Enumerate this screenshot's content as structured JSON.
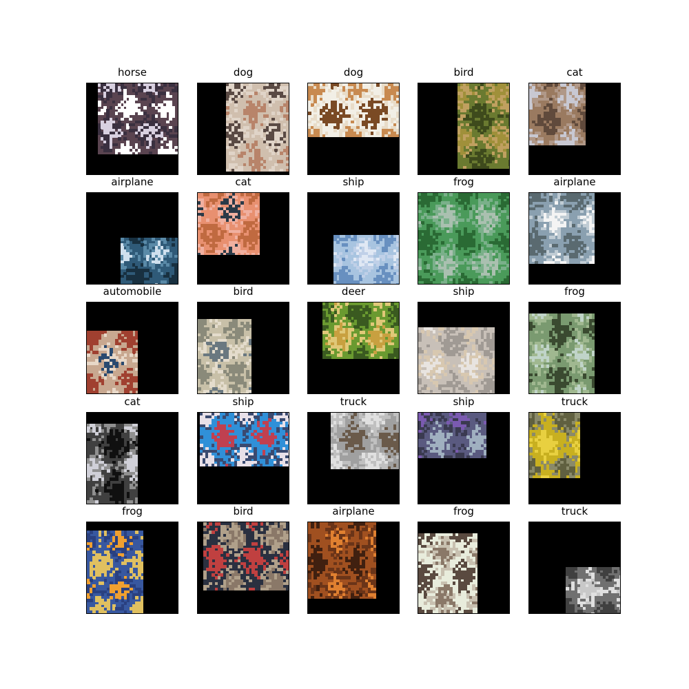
{
  "grid": {
    "cells": [
      {
        "label": "horse",
        "colors": [
          "#5a4450",
          "#d8d0e0",
          "#ffffff",
          "#3a3040"
        ]
      },
      {
        "label": "dog",
        "colors": [
          "#d0bfae",
          "#5a4a44",
          "#b8846a",
          "#e0d4c8"
        ]
      },
      {
        "label": "dog",
        "colors": [
          "#f2efe6",
          "#c88a50",
          "#7a4a24",
          "#e8dcc8"
        ]
      },
      {
        "label": "bird",
        "colors": [
          "#6a7a30",
          "#a0903a",
          "#3e4a1c",
          "#c0a060"
        ]
      },
      {
        "label": "cat",
        "colors": [
          "#9a7a60",
          "#c8c8d2",
          "#604a3c",
          "#b09888"
        ]
      },
      {
        "label": "airplane",
        "colors": [
          "#2f5a78",
          "#cfe0ee",
          "#183040",
          "#5a8aa8"
        ]
      },
      {
        "label": "cat",
        "colors": [
          "#e89070",
          "#2a3a48",
          "#c06a40",
          "#f0b0a0"
        ]
      },
      {
        "label": "ship",
        "colors": [
          "#a8c4e0",
          "#e0e8f4",
          "#6890c0",
          "#c0d0e8"
        ]
      },
      {
        "label": "frog",
        "colors": [
          "#4a9a5a",
          "#aac0b0",
          "#2a6a34",
          "#7ab08a"
        ]
      },
      {
        "label": "airplane",
        "colors": [
          "#8aa0b0",
          "#f4f4f4",
          "#5a6a70",
          "#c0ccd4"
        ]
      },
      {
        "label": "automobile",
        "colors": [
          "#c8a890",
          "#2a4a70",
          "#a04030",
          "#e8d8c8"
        ]
      },
      {
        "label": "bird",
        "colors": [
          "#c8c0a8",
          "#6a7880",
          "#8a8a7a",
          "#e4dccc"
        ]
      },
      {
        "label": "deer",
        "colors": [
          "#6a9a30",
          "#c8a040",
          "#3a5a20",
          "#e0c878"
        ]
      },
      {
        "label": "ship",
        "colors": [
          "#c8c0b8",
          "#e8e4e0",
          "#a09a94",
          "#d8c8b0"
        ]
      },
      {
        "label": "frog",
        "colors": [
          "#7a9a70",
          "#c0d4c8",
          "#3a4a30",
          "#a0b890"
        ]
      },
      {
        "label": "cat",
        "colors": [
          "#404040",
          "#d0d0d8",
          "#101010",
          "#909090"
        ]
      },
      {
        "label": "ship",
        "colors": [
          "#3090d8",
          "#e8e0e8",
          "#c04050",
          "#3a4a70"
        ]
      },
      {
        "label": "truck",
        "colors": [
          "#a0a0a0",
          "#e0e0e0",
          "#6a5a4a",
          "#c0c0c0"
        ]
      },
      {
        "label": "ship",
        "colors": [
          "#5a5a80",
          "#7a5ab0",
          "#a0b0c0",
          "#3a3a50"
        ]
      },
      {
        "label": "truck",
        "colors": [
          "#c8b020",
          "#606040",
          "#e8d040",
          "#8a8a6a"
        ]
      },
      {
        "label": "frog",
        "colors": [
          "#3858a0",
          "#f0a030",
          "#e0c060",
          "#2a4080"
        ]
      },
      {
        "label": "bird",
        "colors": [
          "#2a3040",
          "#8a7868",
          "#c04040",
          "#b0a08a"
        ]
      },
      {
        "label": "airplane",
        "colors": [
          "#a05020",
          "#e08030",
          "#402010",
          "#6a3418"
        ]
      },
      {
        "label": "frog",
        "colors": [
          "#e8ecdc",
          "#8a7868",
          "#5a4a40",
          "#c8c0b0"
        ]
      },
      {
        "label": "truck",
        "colors": [
          "#707070",
          "#c8c8c8",
          "#404040",
          "#e0e0e0"
        ]
      }
    ]
  }
}
